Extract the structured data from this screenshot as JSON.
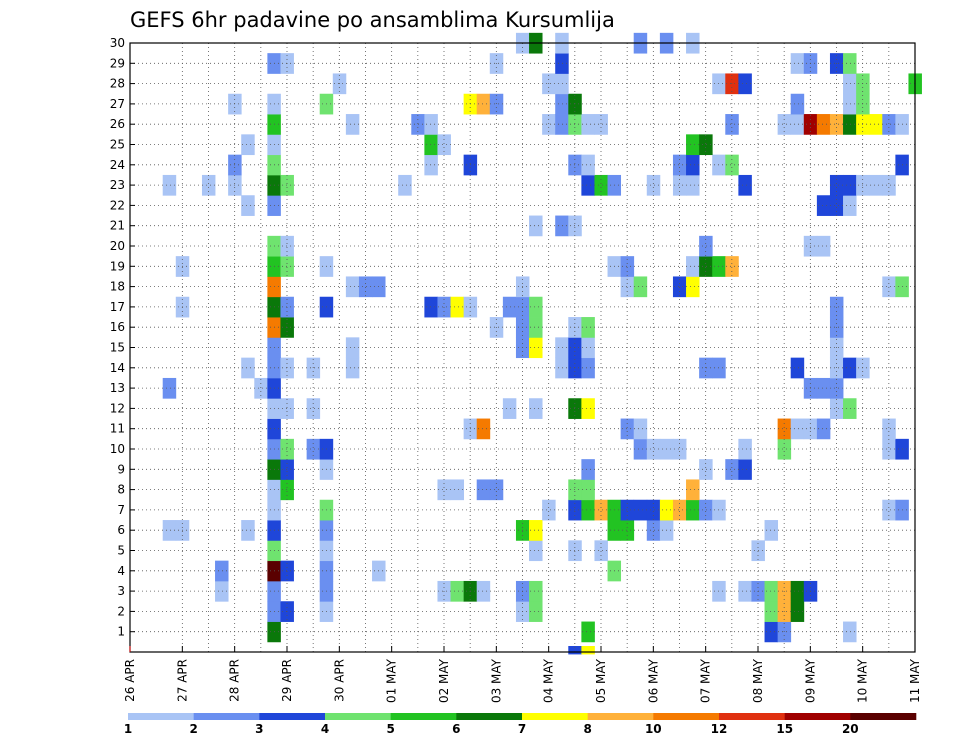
{
  "chart_data": {
    "type": "heatmap",
    "title": "GEFS 6hr padavine po ansamblima Kursumlija",
    "xlabel": "",
    "ylabel": "",
    "x_tick_labels": [
      "26 APR",
      "27 APR",
      "28 APR",
      "29 APR",
      "30 APR",
      "01 MAY",
      "02 MAY",
      "03 MAY",
      "04 MAY",
      "05 MAY",
      "06 MAY",
      "07 MAY",
      "08 MAY",
      "09 MAY",
      "10 MAY",
      "11 MAY"
    ],
    "y_tick_labels": [
      "1",
      "2",
      "3",
      "4",
      "5",
      "6",
      "7",
      "8",
      "9",
      "10",
      "11",
      "12",
      "13",
      "14",
      "15",
      "16",
      "17",
      "18",
      "19",
      "20",
      "21",
      "22",
      "23",
      "24",
      "25",
      "26",
      "27",
      "28",
      "29",
      "30"
    ],
    "x_range_steps": [
      0,
      60
    ],
    "y_range": [
      0,
      30
    ],
    "x_units": "6-hour steps from 26 APR 00Z",
    "grid": true,
    "colorbar": {
      "position": "bottom",
      "labels": [
        "1",
        "2",
        "3",
        "4",
        "5",
        "6",
        "7",
        "8",
        "10",
        "12",
        "15",
        "20"
      ],
      "colors": [
        "#a9c4f5",
        "#6a8ff0",
        "#1f46d9",
        "#6fe36f",
        "#22c322",
        "#0a780a",
        "#ffff00",
        "#ffb13a",
        "#f57a00",
        "#e03010",
        "#a00000",
        "#5a0000"
      ]
    },
    "cells": [
      [
        11,
        1,
        5
      ],
      [
        35,
        1,
        4
      ],
      [
        49,
        1,
        2
      ],
      [
        50,
        1,
        1
      ],
      [
        55,
        1,
        0
      ],
      [
        11,
        2,
        1
      ],
      [
        12,
        2,
        2
      ],
      [
        15,
        2,
        0
      ],
      [
        30,
        2,
        0
      ],
      [
        31,
        2,
        3
      ],
      [
        49,
        2,
        3
      ],
      [
        50,
        2,
        7
      ],
      [
        51,
        2,
        5
      ],
      [
        7,
        3,
        0
      ],
      [
        11,
        3,
        1
      ],
      [
        15,
        3,
        1
      ],
      [
        24,
        3,
        0
      ],
      [
        25,
        3,
        3
      ],
      [
        26,
        3,
        5
      ],
      [
        27,
        3,
        0
      ],
      [
        30,
        3,
        1
      ],
      [
        31,
        3,
        3
      ],
      [
        45,
        3,
        0
      ],
      [
        47,
        3,
        0
      ],
      [
        48,
        3,
        1
      ],
      [
        49,
        3,
        3
      ],
      [
        50,
        3,
        7
      ],
      [
        51,
        3,
        5
      ],
      [
        52,
        3,
        2
      ],
      [
        7,
        4,
        1
      ],
      [
        11,
        4,
        11
      ],
      [
        12,
        4,
        2
      ],
      [
        15,
        4,
        1
      ],
      [
        19,
        4,
        0
      ],
      [
        37,
        4,
        3
      ],
      [
        11,
        5,
        3
      ],
      [
        15,
        5,
        0
      ],
      [
        31,
        5,
        0
      ],
      [
        34,
        5,
        0
      ],
      [
        36,
        5,
        0
      ],
      [
        48,
        5,
        0
      ],
      [
        3,
        6,
        0
      ],
      [
        4,
        6,
        0
      ],
      [
        9,
        6,
        0
      ],
      [
        11,
        6,
        2
      ],
      [
        15,
        6,
        1
      ],
      [
        30,
        6,
        4
      ],
      [
        31,
        6,
        6
      ],
      [
        37,
        6,
        4
      ],
      [
        38,
        6,
        4
      ],
      [
        40,
        6,
        1
      ],
      [
        41,
        6,
        0
      ],
      [
        49,
        6,
        0
      ],
      [
        11,
        7,
        0
      ],
      [
        15,
        7,
        3
      ],
      [
        32,
        7,
        0
      ],
      [
        34,
        7,
        2
      ],
      [
        35,
        7,
        4
      ],
      [
        36,
        7,
        7
      ],
      [
        37,
        7,
        4
      ],
      [
        38,
        7,
        2
      ],
      [
        39,
        7,
        2
      ],
      [
        40,
        7,
        2
      ],
      [
        41,
        7,
        6
      ],
      [
        42,
        7,
        7
      ],
      [
        43,
        7,
        4
      ],
      [
        44,
        7,
        1
      ],
      [
        45,
        7,
        0
      ],
      [
        58,
        7,
        0
      ],
      [
        59,
        7,
        1
      ],
      [
        11,
        8,
        0
      ],
      [
        12,
        8,
        4
      ],
      [
        24,
        8,
        0
      ],
      [
        25,
        8,
        0
      ],
      [
        27,
        8,
        1
      ],
      [
        28,
        8,
        1
      ],
      [
        34,
        8,
        3
      ],
      [
        35,
        8,
        3
      ],
      [
        43,
        8,
        7
      ],
      [
        11,
        9,
        5
      ],
      [
        12,
        9,
        2
      ],
      [
        15,
        9,
        0
      ],
      [
        35,
        9,
        1
      ],
      [
        44,
        9,
        0
      ],
      [
        46,
        9,
        1
      ],
      [
        47,
        9,
        2
      ],
      [
        11,
        10,
        1
      ],
      [
        12,
        10,
        3
      ],
      [
        14,
        10,
        1
      ],
      [
        15,
        10,
        2
      ],
      [
        39,
        10,
        1
      ],
      [
        40,
        10,
        0
      ],
      [
        41,
        10,
        0
      ],
      [
        42,
        10,
        0
      ],
      [
        47,
        10,
        0
      ],
      [
        50,
        10,
        3
      ],
      [
        58,
        10,
        0
      ],
      [
        59,
        10,
        2
      ],
      [
        11,
        11,
        2
      ],
      [
        26,
        11,
        0
      ],
      [
        27,
        11,
        8
      ],
      [
        38,
        11,
        1
      ],
      [
        39,
        11,
        0
      ],
      [
        50,
        11,
        8
      ],
      [
        51,
        11,
        0
      ],
      [
        52,
        11,
        0
      ],
      [
        53,
        11,
        1
      ],
      [
        58,
        11,
        0
      ],
      [
        11,
        12,
        0
      ],
      [
        12,
        12,
        0
      ],
      [
        14,
        12,
        0
      ],
      [
        29,
        12,
        0
      ],
      [
        31,
        12,
        0
      ],
      [
        34,
        12,
        5
      ],
      [
        35,
        12,
        6
      ],
      [
        54,
        12,
        0
      ],
      [
        55,
        12,
        3
      ],
      [
        3,
        13,
        1
      ],
      [
        10,
        13,
        0
      ],
      [
        11,
        13,
        2
      ],
      [
        52,
        13,
        1
      ],
      [
        53,
        13,
        1
      ],
      [
        54,
        13,
        1
      ],
      [
        9,
        14,
        0
      ],
      [
        11,
        14,
        1
      ],
      [
        12,
        14,
        0
      ],
      [
        14,
        14,
        0
      ],
      [
        17,
        14,
        0
      ],
      [
        33,
        14,
        0
      ],
      [
        34,
        14,
        2
      ],
      [
        35,
        14,
        1
      ],
      [
        44,
        14,
        1
      ],
      [
        45,
        14,
        1
      ],
      [
        51,
        14,
        2
      ],
      [
        54,
        14,
        0
      ],
      [
        55,
        14,
        2
      ],
      [
        56,
        14,
        0
      ],
      [
        11,
        15,
        1
      ],
      [
        17,
        15,
        0
      ],
      [
        30,
        15,
        1
      ],
      [
        31,
        15,
        6
      ],
      [
        33,
        15,
        0
      ],
      [
        34,
        15,
        2
      ],
      [
        35,
        15,
        0
      ],
      [
        54,
        15,
        0
      ],
      [
        11,
        16,
        8
      ],
      [
        12,
        16,
        5
      ],
      [
        28,
        16,
        0
      ],
      [
        30,
        16,
        1
      ],
      [
        31,
        16,
        3
      ],
      [
        34,
        16,
        0
      ],
      [
        35,
        16,
        3
      ],
      [
        54,
        16,
        1
      ],
      [
        4,
        17,
        0
      ],
      [
        11,
        17,
        5
      ],
      [
        12,
        17,
        1
      ],
      [
        15,
        17,
        2
      ],
      [
        23,
        17,
        2
      ],
      [
        24,
        17,
        1
      ],
      [
        25,
        17,
        6
      ],
      [
        26,
        17,
        0
      ],
      [
        29,
        17,
        1
      ],
      [
        30,
        17,
        1
      ],
      [
        31,
        17,
        3
      ],
      [
        54,
        17,
        1
      ],
      [
        11,
        18,
        8
      ],
      [
        17,
        18,
        0
      ],
      [
        18,
        18,
        1
      ],
      [
        19,
        18,
        1
      ],
      [
        30,
        18,
        0
      ],
      [
        38,
        18,
        0
      ],
      [
        39,
        18,
        3
      ],
      [
        42,
        18,
        2
      ],
      [
        43,
        18,
        6
      ],
      [
        58,
        18,
        0
      ],
      [
        59,
        18,
        3
      ],
      [
        4,
        19,
        0
      ],
      [
        11,
        19,
        4
      ],
      [
        12,
        19,
        3
      ],
      [
        15,
        19,
        0
      ],
      [
        37,
        19,
        0
      ],
      [
        38,
        19,
        1
      ],
      [
        43,
        19,
        0
      ],
      [
        44,
        19,
        5
      ],
      [
        45,
        19,
        4
      ],
      [
        46,
        19,
        7
      ],
      [
        11,
        20,
        3
      ],
      [
        12,
        20,
        0
      ],
      [
        44,
        20,
        1
      ],
      [
        52,
        20,
        0
      ],
      [
        53,
        20,
        0
      ],
      [
        31,
        21,
        0
      ],
      [
        33,
        21,
        1
      ],
      [
        34,
        21,
        0
      ],
      [
        9,
        22,
        0
      ],
      [
        11,
        22,
        1
      ],
      [
        53,
        22,
        2
      ],
      [
        54,
        22,
        2
      ],
      [
        55,
        22,
        0
      ],
      [
        3,
        23,
        0
      ],
      [
        6,
        23,
        0
      ],
      [
        8,
        23,
        0
      ],
      [
        11,
        23,
        5
      ],
      [
        12,
        23,
        3
      ],
      [
        21,
        23,
        0
      ],
      [
        35,
        23,
        2
      ],
      [
        36,
        23,
        4
      ],
      [
        37,
        23,
        1
      ],
      [
        40,
        23,
        0
      ],
      [
        42,
        23,
        0
      ],
      [
        43,
        23,
        0
      ],
      [
        47,
        23,
        2
      ],
      [
        54,
        23,
        2
      ],
      [
        55,
        23,
        2
      ],
      [
        56,
        23,
        0
      ],
      [
        57,
        23,
        0
      ],
      [
        58,
        23,
        0
      ],
      [
        8,
        24,
        1
      ],
      [
        11,
        24,
        3
      ],
      [
        23,
        24,
        0
      ],
      [
        26,
        24,
        2
      ],
      [
        34,
        24,
        1
      ],
      [
        35,
        24,
        0
      ],
      [
        42,
        24,
        1
      ],
      [
        43,
        24,
        2
      ],
      [
        45,
        24,
        0
      ],
      [
        46,
        24,
        3
      ],
      [
        59,
        24,
        2
      ],
      [
        9,
        25,
        0
      ],
      [
        11,
        25,
        0
      ],
      [
        23,
        25,
        4
      ],
      [
        24,
        25,
        0
      ],
      [
        43,
        25,
        4
      ],
      [
        44,
        25,
        5
      ],
      [
        11,
        26,
        4
      ],
      [
        17,
        26,
        0
      ],
      [
        22,
        26,
        1
      ],
      [
        23,
        26,
        0
      ],
      [
        32,
        26,
        0
      ],
      [
        33,
        26,
        1
      ],
      [
        34,
        26,
        3
      ],
      [
        35,
        26,
        0
      ],
      [
        36,
        26,
        0
      ],
      [
        46,
        26,
        1
      ],
      [
        50,
        26,
        0
      ],
      [
        51,
        26,
        0
      ],
      [
        52,
        26,
        10
      ],
      [
        53,
        26,
        8
      ],
      [
        54,
        26,
        7
      ],
      [
        55,
        26,
        5
      ],
      [
        56,
        26,
        6
      ],
      [
        57,
        26,
        6
      ],
      [
        58,
        26,
        1
      ],
      [
        59,
        26,
        0
      ],
      [
        8,
        27,
        0
      ],
      [
        11,
        27,
        0
      ],
      [
        15,
        27,
        3
      ],
      [
        26,
        27,
        6
      ],
      [
        27,
        27,
        7
      ],
      [
        28,
        27,
        1
      ],
      [
        33,
        27,
        1
      ],
      [
        34,
        27,
        5
      ],
      [
        51,
        27,
        1
      ],
      [
        55,
        27,
        0
      ],
      [
        56,
        27,
        3
      ],
      [
        16,
        28,
        0
      ],
      [
        32,
        28,
        0
      ],
      [
        33,
        28,
        0
      ],
      [
        45,
        28,
        0
      ],
      [
        46,
        28,
        9
      ],
      [
        47,
        28,
        2
      ],
      [
        55,
        28,
        0
      ],
      [
        56,
        28,
        3
      ],
      [
        60,
        28,
        4
      ],
      [
        11,
        29,
        1
      ],
      [
        12,
        29,
        0
      ],
      [
        28,
        29,
        0
      ],
      [
        33,
        29,
        2
      ],
      [
        51,
        29,
        0
      ],
      [
        52,
        29,
        1
      ],
      [
        54,
        29,
        2
      ],
      [
        55,
        29,
        3
      ],
      [
        30,
        30,
        0
      ],
      [
        31,
        30,
        5
      ],
      [
        33,
        30,
        0
      ],
      [
        39,
        30,
        1
      ],
      [
        41,
        30,
        1
      ],
      [
        43,
        30,
        0
      ]
    ],
    "extra_cells": [
      [
        34,
        0,
        2
      ],
      [
        35,
        0,
        6
      ]
    ]
  }
}
